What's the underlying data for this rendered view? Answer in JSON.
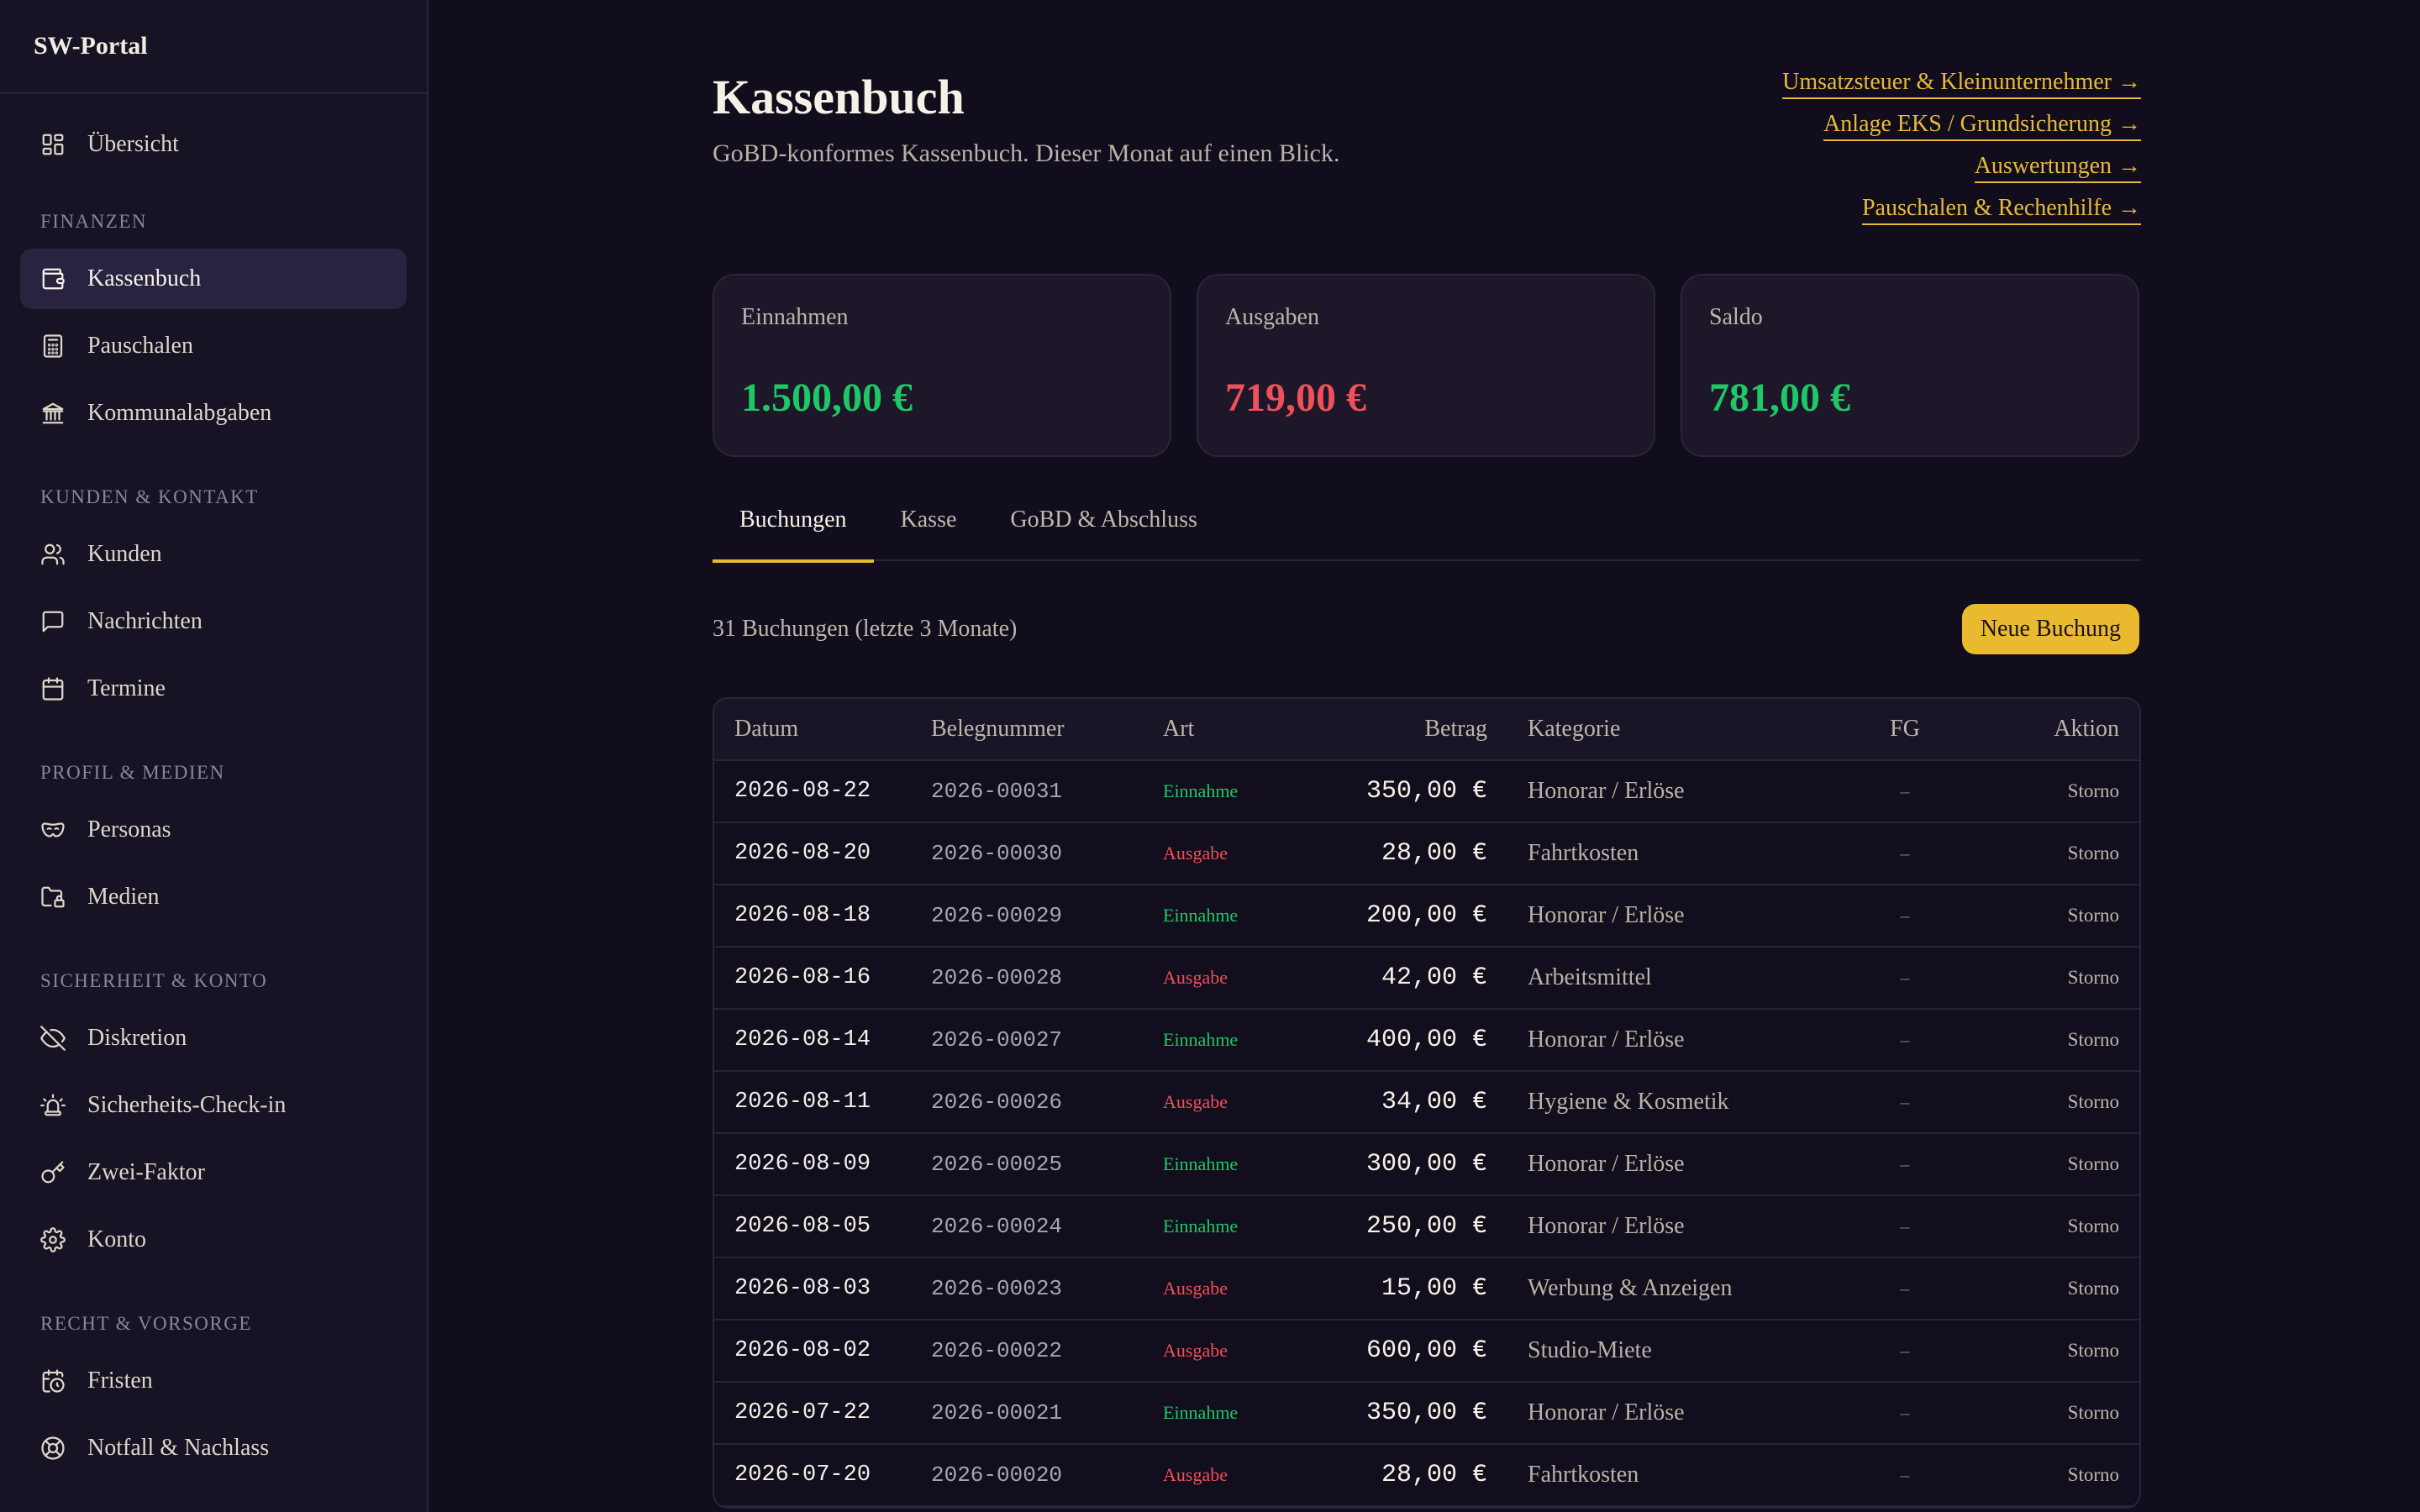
{
  "sidebar": {
    "brand": "SW-Portal",
    "top_items": [
      {
        "label": "Übersicht",
        "icon": "grid-icon"
      }
    ],
    "sections": [
      {
        "title": "FINANZEN",
        "items": [
          {
            "label": "Kassenbuch",
            "icon": "wallet-icon",
            "active": true
          },
          {
            "label": "Pauschalen",
            "icon": "calculator-icon"
          },
          {
            "label": "Kommunalabgaben",
            "icon": "bank-icon"
          }
        ]
      },
      {
        "title": "KUNDEN & KONTAKT",
        "items": [
          {
            "label": "Kunden",
            "icon": "users-icon"
          },
          {
            "label": "Nachrichten",
            "icon": "message-icon"
          },
          {
            "label": "Termine",
            "icon": "calendar-icon"
          }
        ]
      },
      {
        "title": "PROFIL & MEDIEN",
        "items": [
          {
            "label": "Personas",
            "icon": "mask-icon"
          },
          {
            "label": "Medien",
            "icon": "folder-lock-icon"
          }
        ]
      },
      {
        "title": "SICHERHEIT & KONTO",
        "items": [
          {
            "label": "Diskretion",
            "icon": "eye-off-icon"
          },
          {
            "label": "Sicherheits-Check-in",
            "icon": "siren-icon"
          },
          {
            "label": "Zwei-Faktor",
            "icon": "key-icon"
          },
          {
            "label": "Konto",
            "icon": "gear-icon"
          }
        ]
      },
      {
        "title": "RECHT & VORSORGE",
        "items": [
          {
            "label": "Fristen",
            "icon": "calendar-clock-icon"
          },
          {
            "label": "Notfall & Nachlass",
            "icon": "lifebuoy-icon"
          }
        ]
      }
    ]
  },
  "header": {
    "title": "Kassenbuch",
    "subtitle": "GoBD-konformes Kassenbuch. Dieser Monat auf einen Blick.",
    "links": [
      "Umsatzsteuer & Kleinunternehmer →",
      "Anlage EKS / Grundsicherung →",
      "Auswertungen →",
      "Pauschalen & Rechenhilfe →"
    ]
  },
  "cards": [
    {
      "label": "Einnahmen",
      "value": "1.500,00 €",
      "tone": "green"
    },
    {
      "label": "Ausgaben",
      "value": "719,00 €",
      "tone": "red"
    },
    {
      "label": "Saldo",
      "value": "781,00 €",
      "tone": "green"
    }
  ],
  "tabs": [
    {
      "label": "Buchungen",
      "active": true
    },
    {
      "label": "Kasse",
      "active": false
    },
    {
      "label": "GoBD & Abschluss",
      "active": false
    }
  ],
  "toolbar": {
    "count_label": "31 Buchungen (letzte 3 Monate)",
    "new_button": "Neue Buchung"
  },
  "table": {
    "headers": {
      "datum": "Datum",
      "beleg": "Belegnummer",
      "art": "Art",
      "betrag": "Betrag",
      "kategorie": "Kategorie",
      "fg": "FG",
      "aktion": "Aktion"
    },
    "rows": [
      {
        "datum": "2026-08-22",
        "beleg": "2026-00031",
        "art": "Einnahme",
        "betrag": "350,00 €",
        "kategorie": "Honorar / Erlöse",
        "fg": "–",
        "aktion": "Storno"
      },
      {
        "datum": "2026-08-20",
        "beleg": "2026-00030",
        "art": "Ausgabe",
        "betrag": "28,00 €",
        "kategorie": "Fahrtkosten",
        "fg": "–",
        "aktion": "Storno"
      },
      {
        "datum": "2026-08-18",
        "beleg": "2026-00029",
        "art": "Einnahme",
        "betrag": "200,00 €",
        "kategorie": "Honorar / Erlöse",
        "fg": "–",
        "aktion": "Storno"
      },
      {
        "datum": "2026-08-16",
        "beleg": "2026-00028",
        "art": "Ausgabe",
        "betrag": "42,00 €",
        "kategorie": "Arbeitsmittel",
        "fg": "–",
        "aktion": "Storno"
      },
      {
        "datum": "2026-08-14",
        "beleg": "2026-00027",
        "art": "Einnahme",
        "betrag": "400,00 €",
        "kategorie": "Honorar / Erlöse",
        "fg": "–",
        "aktion": "Storno"
      },
      {
        "datum": "2026-08-11",
        "beleg": "2026-00026",
        "art": "Ausgabe",
        "betrag": "34,00 €",
        "kategorie": "Hygiene & Kosmetik",
        "fg": "–",
        "aktion": "Storno"
      },
      {
        "datum": "2026-08-09",
        "beleg": "2026-00025",
        "art": "Einnahme",
        "betrag": "300,00 €",
        "kategorie": "Honorar / Erlöse",
        "fg": "–",
        "aktion": "Storno"
      },
      {
        "datum": "2026-08-05",
        "beleg": "2026-00024",
        "art": "Einnahme",
        "betrag": "250,00 €",
        "kategorie": "Honorar / Erlöse",
        "fg": "–",
        "aktion": "Storno"
      },
      {
        "datum": "2026-08-03",
        "beleg": "2026-00023",
        "art": "Ausgabe",
        "betrag": "15,00 €",
        "kategorie": "Werbung & Anzeigen",
        "fg": "–",
        "aktion": "Storno"
      },
      {
        "datum": "2026-08-02",
        "beleg": "2026-00022",
        "art": "Ausgabe",
        "betrag": "600,00 €",
        "kategorie": "Studio-Miete",
        "fg": "–",
        "aktion": "Storno"
      },
      {
        "datum": "2026-07-22",
        "beleg": "2026-00021",
        "art": "Einnahme",
        "betrag": "350,00 €",
        "kategorie": "Honorar / Erlöse",
        "fg": "–",
        "aktion": "Storno"
      },
      {
        "datum": "2026-07-20",
        "beleg": "2026-00020",
        "art": "Ausgabe",
        "betrag": "28,00 €",
        "kategorie": "Fahrtkosten",
        "fg": "–",
        "aktion": "Storno"
      }
    ]
  },
  "colors": {
    "accent": "#e6b93c",
    "income": "#1fc766",
    "expense": "#f0505a",
    "background": "#110d1c",
    "sidebar": "#171224"
  }
}
